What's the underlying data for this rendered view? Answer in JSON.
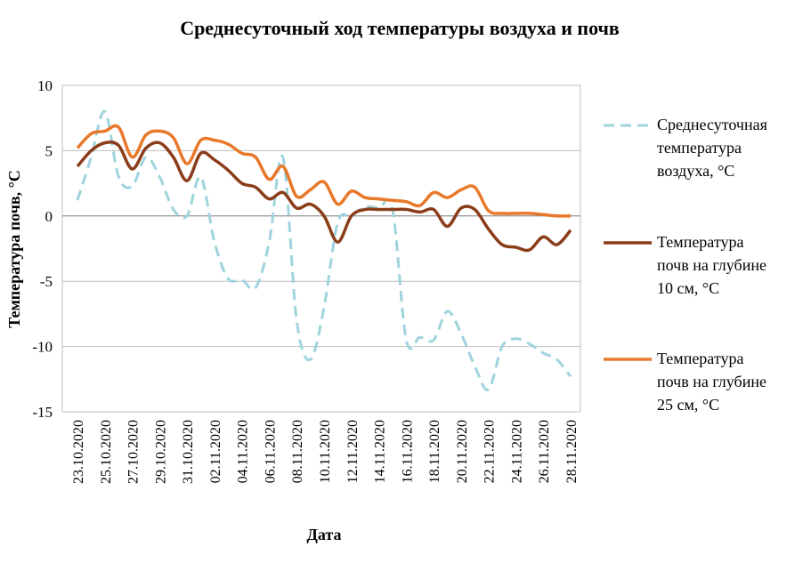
{
  "chart_data": {
    "type": "line",
    "title": "Среднесуточный  ход  температуры  воздуха  и  почв",
    "xlabel": "Дата",
    "ylabel": "Температура почв, °С",
    "ylim": [
      -15,
      10
    ],
    "yticks": [
      10,
      5,
      0,
      -5,
      -10,
      -15
    ],
    "x_tick_labels": [
      "23.10.2020",
      "25.10.2020",
      "27.10.2020",
      "29.10.2020",
      "31.10.2020",
      "02.11.2020",
      "04.11.2020",
      "06.11.2020",
      "08.11.2020",
      "10.11.2020",
      "12.11.2020",
      "14.11.2020",
      "16.11.2020",
      "18.11.2020",
      "20.11.2020",
      "22.11.2020",
      "24.11.2020",
      "26.11.2020",
      "28.11.2020"
    ],
    "x": [
      "23.10.2020",
      "24.10.2020",
      "25.10.2020",
      "26.10.2020",
      "27.10.2020",
      "28.10.2020",
      "29.10.2020",
      "30.10.2020",
      "31.10.2020",
      "01.11.2020",
      "02.11.2020",
      "03.11.2020",
      "04.11.2020",
      "05.11.2020",
      "06.11.2020",
      "07.11.2020",
      "08.11.2020",
      "09.11.2020",
      "10.11.2020",
      "11.11.2020",
      "12.11.2020",
      "13.11.2020",
      "14.11.2020",
      "15.11.2020",
      "16.11.2020",
      "17.11.2020",
      "18.11.2020",
      "19.11.2020",
      "20.11.2020",
      "21.11.2020",
      "22.11.2020",
      "23.11.2020",
      "24.11.2020",
      "25.11.2020",
      "26.11.2020",
      "27.11.2020",
      "28.11.2020"
    ],
    "grid": true,
    "legend_position": "right",
    "series": [
      {
        "name": "Среднесуточная температура воздуха, °С",
        "color": "#9fd4dd",
        "dash": true,
        "values": [
          1.2,
          4.5,
          8.0,
          3.0,
          2.3,
          4.5,
          3.0,
          0.5,
          0.0,
          3.0,
          -2.0,
          -4.8,
          -4.9,
          -5.5,
          -2.0,
          4.5,
          -8.0,
          -11.0,
          -7.0,
          -0.5,
          0.0,
          0.7,
          0.6,
          0.5,
          -9.5,
          -9.3,
          -9.5,
          -7.3,
          -9.0,
          -11.5,
          -13.3,
          -10.0,
          -9.4,
          -9.8,
          -10.5,
          -11.0,
          -12.3
        ]
      },
      {
        "name": "Температура почв на глубине 10 см, °С",
        "color": "#8b3d1a",
        "dash": false,
        "values": [
          3.8,
          5.0,
          5.6,
          5.4,
          3.6,
          5.2,
          5.6,
          4.5,
          2.7,
          4.8,
          4.3,
          3.5,
          2.5,
          2.2,
          1.3,
          1.8,
          0.6,
          0.9,
          0.0,
          -2.0,
          0.0,
          0.5,
          0.5,
          0.5,
          0.5,
          0.3,
          0.5,
          -0.8,
          0.6,
          0.5,
          -1.0,
          -2.2,
          -2.4,
          -2.6,
          -1.6,
          -2.2,
          -1.1
        ]
      },
      {
        "name": "Температура почв на глубине 25 см, °С",
        "color": "#e8782a",
        "dash": false,
        "values": [
          5.2,
          6.3,
          6.5,
          6.8,
          4.5,
          6.2,
          6.5,
          6.0,
          4.0,
          5.8,
          5.8,
          5.5,
          4.8,
          4.5,
          2.8,
          3.8,
          1.5,
          2.0,
          2.6,
          0.9,
          1.9,
          1.4,
          1.3,
          1.2,
          1.1,
          0.8,
          1.8,
          1.4,
          2.0,
          2.2,
          0.4,
          0.2,
          0.2,
          0.2,
          0.1,
          0.0,
          0.0
        ]
      }
    ]
  }
}
